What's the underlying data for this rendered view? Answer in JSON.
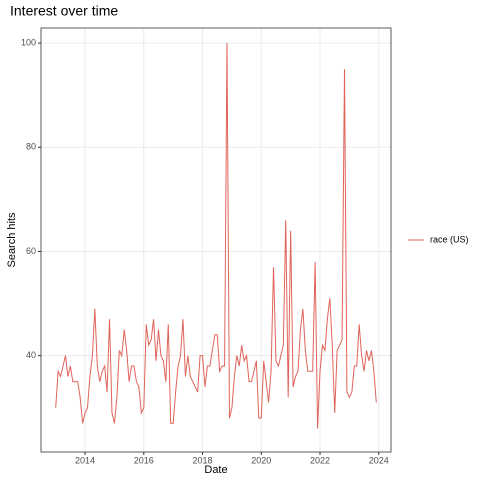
{
  "chart_data": {
    "type": "line",
    "title": "Interest over time",
    "x_label": "Date",
    "y_label": "Search hits",
    "x": [
      "2013-01",
      "2013-02",
      "2013-03",
      "2013-04",
      "2013-05",
      "2013-06",
      "2013-07",
      "2013-08",
      "2013-09",
      "2013-10",
      "2013-11",
      "2013-12",
      "2014-01",
      "2014-02",
      "2014-03",
      "2014-04",
      "2014-05",
      "2014-06",
      "2014-07",
      "2014-08",
      "2014-09",
      "2014-10",
      "2014-11",
      "2014-12",
      "2015-01",
      "2015-02",
      "2015-03",
      "2015-04",
      "2015-05",
      "2015-06",
      "2015-07",
      "2015-08",
      "2015-09",
      "2015-10",
      "2015-11",
      "2015-12",
      "2016-01",
      "2016-02",
      "2016-03",
      "2016-04",
      "2016-05",
      "2016-06",
      "2016-07",
      "2016-08",
      "2016-09",
      "2016-10",
      "2016-11",
      "2016-12",
      "2017-01",
      "2017-02",
      "2017-03",
      "2017-04",
      "2017-05",
      "2017-06",
      "2017-07",
      "2017-08",
      "2017-09",
      "2017-10",
      "2017-11",
      "2017-12",
      "2018-01",
      "2018-02",
      "2018-03",
      "2018-04",
      "2018-05",
      "2018-06",
      "2018-07",
      "2018-08",
      "2018-09",
      "2018-10",
      "2018-11",
      "2018-12",
      "2019-01",
      "2019-02",
      "2019-03",
      "2019-04",
      "2019-05",
      "2019-06",
      "2019-07",
      "2019-08",
      "2019-09",
      "2019-10",
      "2019-11",
      "2019-12",
      "2020-01",
      "2020-02",
      "2020-03",
      "2020-04",
      "2020-05",
      "2020-06",
      "2020-07",
      "2020-08",
      "2020-09",
      "2020-10",
      "2020-11",
      "2020-12",
      "2021-01",
      "2021-02",
      "2021-03",
      "2021-04",
      "2021-05",
      "2021-06",
      "2021-07",
      "2021-08",
      "2021-09",
      "2021-10",
      "2021-11",
      "2021-12",
      "2022-01",
      "2022-02",
      "2022-03",
      "2022-04",
      "2022-05",
      "2022-06",
      "2022-07",
      "2022-08",
      "2022-09",
      "2022-10",
      "2022-11",
      "2022-12",
      "2023-01",
      "2023-02",
      "2023-03",
      "2023-04",
      "2023-05",
      "2023-06",
      "2023-07",
      "2023-08",
      "2023-09",
      "2023-10",
      "2023-11",
      "2023-12"
    ],
    "series": [
      {
        "name": "race (US)",
        "color": "#e0635a",
        "values": [
          30,
          37,
          36,
          38,
          40,
          36,
          38,
          35,
          35,
          35,
          32,
          27,
          29,
          30,
          36,
          40,
          49,
          38,
          35,
          37,
          38,
          33,
          47,
          29,
          27,
          32,
          41,
          40,
          45,
          41,
          35,
          38,
          38,
          35,
          34,
          29,
          30,
          46,
          42,
          43,
          47,
          39,
          45,
          40,
          39,
          35,
          46,
          27,
          27,
          33,
          38,
          40,
          47,
          36,
          40,
          36,
          35,
          34,
          33,
          40,
          40,
          34,
          38,
          38,
          41,
          44,
          44,
          37,
          38,
          38,
          100,
          28,
          30,
          36,
          40,
          38,
          42,
          39,
          40,
          35,
          35,
          37,
          39,
          28,
          28,
          39,
          35,
          31,
          37,
          57,
          39,
          38,
          40,
          42,
          66,
          32,
          64,
          34,
          36,
          37,
          45,
          49,
          41,
          37,
          37,
          37,
          58,
          26,
          37,
          42,
          41,
          47,
          51,
          42,
          29,
          41,
          42,
          43,
          95,
          33,
          32,
          33,
          38,
          38,
          46,
          40,
          37,
          41,
          39,
          41,
          37,
          31
        ]
      }
    ],
    "xlim": [
      "2012-07",
      "2024-06"
    ],
    "xticks": [
      {
        "value": "2014-01",
        "label": "2014"
      },
      {
        "value": "2016-01",
        "label": "2016"
      },
      {
        "value": "2018-01",
        "label": "2018"
      },
      {
        "value": "2020-01",
        "label": "2020"
      },
      {
        "value": "2022-01",
        "label": "2022"
      },
      {
        "value": "2024-01",
        "label": "2024"
      }
    ],
    "ylim": [
      21.5,
      102.9
    ],
    "yticks": [
      40,
      60,
      80,
      100
    ],
    "grid": true,
    "legend": "right"
  }
}
